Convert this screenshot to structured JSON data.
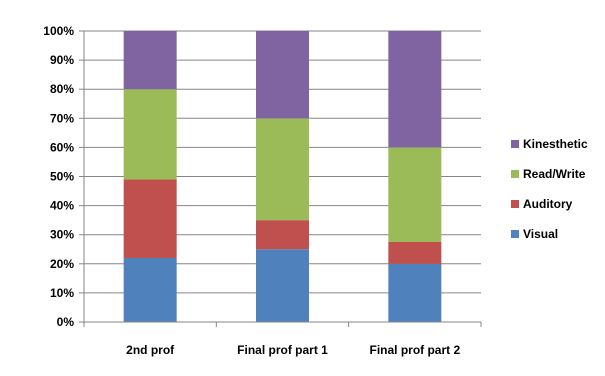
{
  "chart_data": {
    "type": "bar",
    "stacked": true,
    "percent_stacked": true,
    "categories": [
      "2nd prof",
      "Final prof part 1",
      "Final prof part 2"
    ],
    "series": [
      {
        "name": "Visual",
        "color": "#4F81BD",
        "values": [
          22,
          25,
          20
        ]
      },
      {
        "name": "Auditory",
        "color": "#C0504D",
        "values": [
          27,
          10,
          7.5
        ]
      },
      {
        "name": "Read/Write",
        "color": "#9BBB59",
        "values": [
          31,
          35,
          32.5
        ]
      },
      {
        "name": "Kinesthetic",
        "color": "#8064A2",
        "values": [
          20,
          30,
          40
        ]
      }
    ],
    "y_ticks": [
      "0%",
      "10%",
      "20%",
      "30%",
      "40%",
      "50%",
      "60%",
      "70%",
      "80%",
      "90%",
      "100%"
    ],
    "ylim": [
      0,
      100
    ],
    "grid": true,
    "legend_position": "right"
  }
}
